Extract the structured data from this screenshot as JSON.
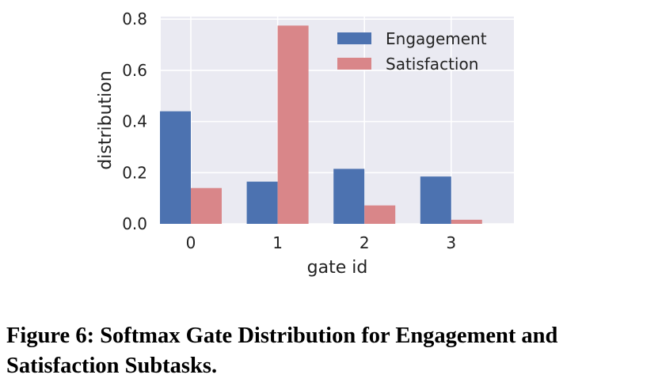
{
  "chart_data": {
    "type": "bar",
    "categories": [
      "0",
      "1",
      "2",
      "3"
    ],
    "series": [
      {
        "name": "Engagement",
        "values": [
          0.44,
          0.165,
          0.215,
          0.185
        ],
        "color": "#4c72b0"
      },
      {
        "name": "Satisfaction",
        "values": [
          0.14,
          0.775,
          0.072,
          0.016
        ],
        "color": "#d98689"
      }
    ],
    "title": "",
    "xlabel": "gate id",
    "ylabel": "distribution",
    "ylim": [
      0,
      0.81
    ],
    "yticks": [
      0.0,
      0.2,
      0.4,
      0.6,
      0.8
    ],
    "ytick_labels": [
      "0.0",
      "0.2",
      "0.4",
      "0.6",
      "0.8"
    ],
    "grid": true,
    "background": "#eaeaf2",
    "legend_position": "top-right"
  },
  "caption": "Figure 6: Softmax Gate Distribution for Engagement and Satisfaction Subtasks."
}
